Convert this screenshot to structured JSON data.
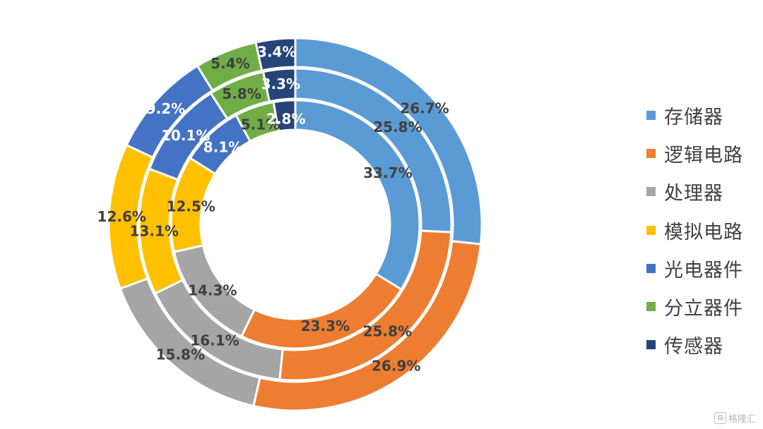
{
  "chart_data": {
    "type": "pie",
    "subtype": "multi-ring donut",
    "title": "",
    "categories": [
      "存储器",
      "逻辑电路",
      "处理器",
      "模拟电路",
      "光电器件",
      "分立器件",
      "传感器"
    ],
    "colors": [
      "#5b9bd5",
      "#ed7d31",
      "#a5a5a5",
      "#ffc000",
      "#4472c4",
      "#70ad47",
      "#264478"
    ],
    "series": [
      {
        "ring": "outer",
        "values": [
          26.7,
          26.9,
          15.8,
          12.6,
          9.2,
          5.4,
          3.4
        ],
        "labels": [
          "26.7%",
          "26.9%",
          "15.8%",
          "12.6%",
          "9.2%",
          "5.4%",
          "3.4%"
        ]
      },
      {
        "ring": "middle",
        "values": [
          25.8,
          25.8,
          16.1,
          13.1,
          10.1,
          5.8,
          3.3
        ],
        "labels": [
          "25.8%",
          "25.8%",
          "16.1%",
          "13.1%",
          "10.1%",
          "5.8%",
          "3.3%"
        ]
      },
      {
        "ring": "inner",
        "values": [
          33.7,
          23.3,
          14.3,
          12.5,
          8.1,
          5.1,
          2.8
        ],
        "labels": [
          "33.7%",
          "23.3%",
          "14.3%",
          "12.5%",
          "8.1%",
          "5.1%",
          "2.8%"
        ]
      }
    ],
    "legend_position": "right"
  },
  "legend": {
    "items": [
      "存储器",
      "逻辑电路",
      "处理器",
      "模拟电路",
      "光电器件",
      "分立器件",
      "传感器"
    ]
  },
  "watermark": {
    "icon": "G",
    "text": "格隆汇"
  }
}
